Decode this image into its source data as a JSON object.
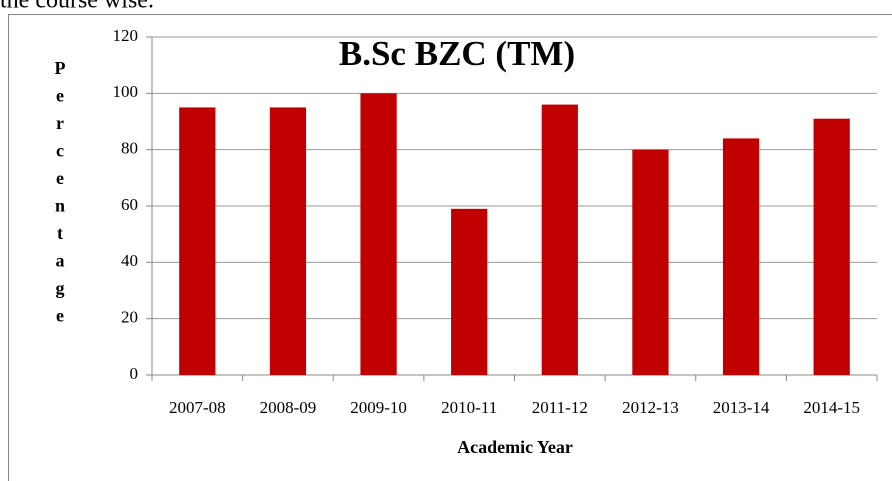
{
  "context_text": "the course wise.",
  "chart_data": {
    "type": "bar",
    "title": "B.Sc BZC (TM)",
    "x_label": "Academic Year",
    "y_label": "Percentage",
    "categories": [
      "2007-08",
      "2008-09",
      "2009-10",
      "2010-11",
      "2011-12",
      "2012-13",
      "2013-14",
      "2014-15"
    ],
    "values": [
      95,
      95,
      100,
      59,
      96,
      80,
      84,
      91
    ],
    "color": "#c00000",
    "ylim": [
      0,
      120
    ],
    "yticks": [
      0,
      20,
      40,
      60,
      80,
      100,
      120
    ],
    "grid": true
  }
}
